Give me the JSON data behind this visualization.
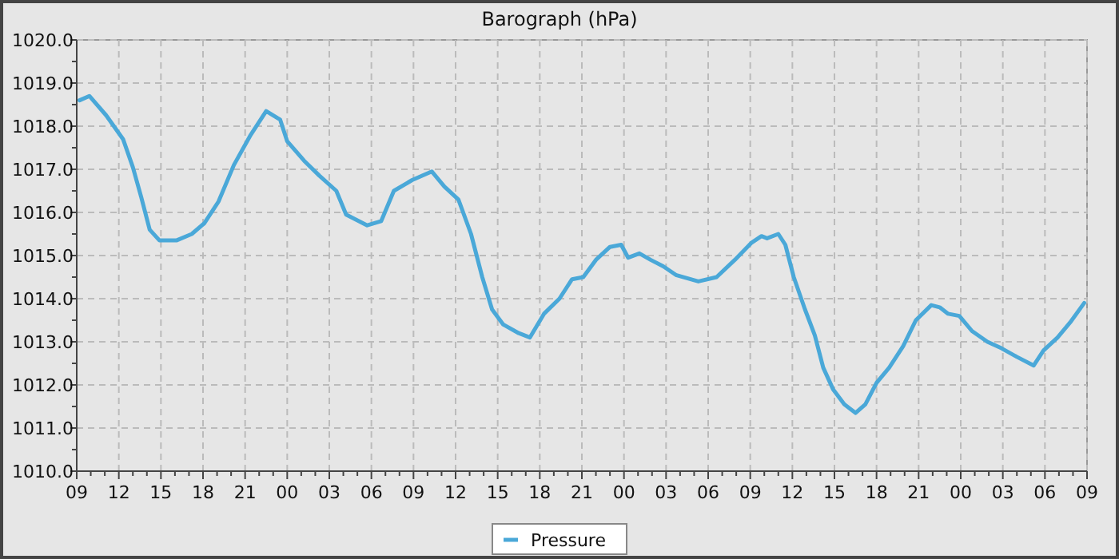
{
  "chart_data": {
    "type": "line",
    "title": "Barograph (hPa)",
    "x": [
      9.2,
      9.9,
      11.1,
      12.3,
      13.0,
      13.6,
      14.2,
      14.9,
      16.1,
      17.2,
      18.1,
      19.1,
      20.2,
      21.4,
      22.5,
      23.5,
      24.0,
      25.2,
      26.3,
      27.5,
      28.2,
      29.7,
      30.7,
      31.6,
      32.9,
      34.3,
      35.2,
      36.2,
      37.1,
      37.9,
      38.6,
      39.4,
      40.5,
      41.3,
      42.3,
      43.4,
      44.3,
      45.1,
      46.0,
      47.0,
      47.8,
      48.3,
      49.1,
      49.9,
      50.8,
      51.7,
      53.3,
      54.6,
      55.9,
      57.1,
      57.8,
      58.2,
      59.0,
      59.5,
      60.1,
      60.9,
      61.6,
      62.2,
      62.9,
      63.7,
      64.5,
      65.2,
      66.0,
      66.9,
      67.9,
      68.8,
      69.9,
      70.5,
      71.1,
      71.9,
      72.8,
      73.9,
      74.9,
      76.0,
      77.2,
      77.9,
      78.9,
      79.8,
      80.8
    ],
    "series": [
      {
        "name": "Pressure",
        "color": "#4aa8d8",
        "values": [
          1018.6,
          1018.7,
          1018.25,
          1017.7,
          1017.05,
          1016.35,
          1015.6,
          1015.35,
          1015.35,
          1015.5,
          1015.75,
          1016.25,
          1017.1,
          1017.8,
          1018.35,
          1018.15,
          1017.65,
          1017.2,
          1016.85,
          1016.5,
          1015.95,
          1015.7,
          1015.8,
          1016.5,
          1016.75,
          1016.95,
          1016.6,
          1016.3,
          1015.5,
          1014.5,
          1013.75,
          1013.4,
          1013.2,
          1013.1,
          1013.65,
          1014.0,
          1014.45,
          1014.5,
          1014.9,
          1015.2,
          1015.25,
          1014.95,
          1015.05,
          1014.9,
          1014.75,
          1014.55,
          1014.4,
          1014.5,
          1014.9,
          1015.3,
          1015.45,
          1015.4,
          1015.5,
          1015.25,
          1014.5,
          1013.75,
          1013.15,
          1012.4,
          1011.9,
          1011.55,
          1011.35,
          1011.55,
          1012.05,
          1012.4,
          1012.9,
          1013.5,
          1013.85,
          1013.8,
          1013.65,
          1013.6,
          1013.25,
          1013.0,
          1012.85,
          1012.65,
          1012.45,
          1012.8,
          1013.1,
          1013.45,
          1013.9
        ]
      }
    ],
    "xlim": [
      9,
      81
    ],
    "xticks": [
      {
        "value": 9,
        "label": "09"
      },
      {
        "value": 10,
        "label": null
      },
      {
        "value": 11,
        "label": null
      },
      {
        "value": 12,
        "label": "12"
      },
      {
        "value": 13,
        "label": null
      },
      {
        "value": 14,
        "label": null
      },
      {
        "value": 15,
        "label": "15"
      },
      {
        "value": 16,
        "label": null
      },
      {
        "value": 17,
        "label": null
      },
      {
        "value": 18,
        "label": "18"
      },
      {
        "value": 19,
        "label": null
      },
      {
        "value": 20,
        "label": null
      },
      {
        "value": 21,
        "label": "21"
      },
      {
        "value": 22,
        "label": null
      },
      {
        "value": 23,
        "label": null
      },
      {
        "value": 24,
        "label": "00"
      },
      {
        "value": 25,
        "label": null
      },
      {
        "value": 26,
        "label": null
      },
      {
        "value": 27,
        "label": "03"
      },
      {
        "value": 28,
        "label": null
      },
      {
        "value": 29,
        "label": null
      },
      {
        "value": 30,
        "label": "06"
      },
      {
        "value": 31,
        "label": null
      },
      {
        "value": 32,
        "label": null
      },
      {
        "value": 33,
        "label": "09"
      },
      {
        "value": 34,
        "label": null
      },
      {
        "value": 35,
        "label": null
      },
      {
        "value": 36,
        "label": "12"
      },
      {
        "value": 37,
        "label": null
      },
      {
        "value": 38,
        "label": null
      },
      {
        "value": 39,
        "label": "15"
      },
      {
        "value": 40,
        "label": null
      },
      {
        "value": 41,
        "label": null
      },
      {
        "value": 42,
        "label": "18"
      },
      {
        "value": 43,
        "label": null
      },
      {
        "value": 44,
        "label": null
      },
      {
        "value": 45,
        "label": "21"
      },
      {
        "value": 46,
        "label": null
      },
      {
        "value": 47,
        "label": null
      },
      {
        "value": 48,
        "label": "00"
      },
      {
        "value": 49,
        "label": null
      },
      {
        "value": 50,
        "label": null
      },
      {
        "value": 51,
        "label": "03"
      },
      {
        "value": 52,
        "label": null
      },
      {
        "value": 53,
        "label": null
      },
      {
        "value": 54,
        "label": "06"
      },
      {
        "value": 55,
        "label": null
      },
      {
        "value": 56,
        "label": null
      },
      {
        "value": 57,
        "label": "09"
      },
      {
        "value": 58,
        "label": null
      },
      {
        "value": 59,
        "label": null
      },
      {
        "value": 60,
        "label": "12"
      },
      {
        "value": 61,
        "label": null
      },
      {
        "value": 62,
        "label": null
      },
      {
        "value": 63,
        "label": "15"
      },
      {
        "value": 64,
        "label": null
      },
      {
        "value": 65,
        "label": null
      },
      {
        "value": 66,
        "label": "18"
      },
      {
        "value": 67,
        "label": null
      },
      {
        "value": 68,
        "label": null
      },
      {
        "value": 69,
        "label": "21"
      },
      {
        "value": 70,
        "label": null
      },
      {
        "value": 71,
        "label": null
      },
      {
        "value": 72,
        "label": "00"
      },
      {
        "value": 73,
        "label": null
      },
      {
        "value": 74,
        "label": null
      },
      {
        "value": 75,
        "label": "03"
      },
      {
        "value": 76,
        "label": null
      },
      {
        "value": 77,
        "label": null
      },
      {
        "value": 78,
        "label": "06"
      },
      {
        "value": 79,
        "label": null
      },
      {
        "value": 80,
        "label": null
      },
      {
        "value": 81,
        "label": "09"
      }
    ],
    "ylim": [
      1010,
      1020
    ],
    "yticks": [
      {
        "value": 1010,
        "label": "1010.0"
      },
      {
        "value": 1010.5,
        "label": null
      },
      {
        "value": 1011,
        "label": "1011.0"
      },
      {
        "value": 1011.5,
        "label": null
      },
      {
        "value": 1012,
        "label": "1012.0"
      },
      {
        "value": 1012.5,
        "label": null
      },
      {
        "value": 1013,
        "label": "1013.0"
      },
      {
        "value": 1013.5,
        "label": null
      },
      {
        "value": 1014,
        "label": "1014.0"
      },
      {
        "value": 1014.5,
        "label": null
      },
      {
        "value": 1015,
        "label": "1015.0"
      },
      {
        "value": 1015.5,
        "label": null
      },
      {
        "value": 1016,
        "label": "1016.0"
      },
      {
        "value": 1016.5,
        "label": null
      },
      {
        "value": 1017,
        "label": "1017.0"
      },
      {
        "value": 1017.5,
        "label": null
      },
      {
        "value": 1018,
        "label": "1018.0"
      },
      {
        "value": 1018.5,
        "label": null
      },
      {
        "value": 1019,
        "label": "1019.0"
      },
      {
        "value": 1019.5,
        "label": null
      },
      {
        "value": 1020,
        "label": "1020.0"
      }
    ],
    "grid": true,
    "legend": "bottom",
    "marker": "none",
    "line_style": "solid"
  }
}
